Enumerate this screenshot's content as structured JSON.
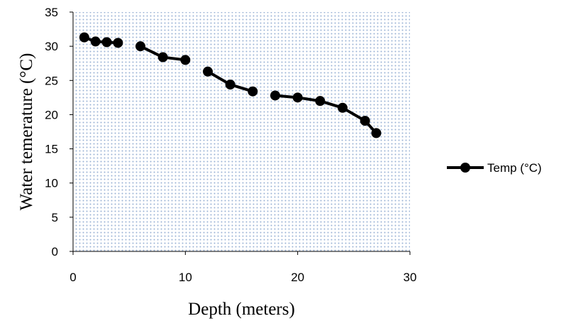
{
  "chart_data": {
    "type": "line",
    "title": "",
    "xlabel": "Depth (meters)",
    "ylabel": "Water temerature (°C)",
    "xlim": [
      0,
      30
    ],
    "ylim": [
      0,
      35
    ],
    "xticks": [
      "0",
      "10",
      "20",
      "30"
    ],
    "yticks": [
      "0",
      "5",
      "10",
      "15",
      "20",
      "25",
      "30",
      "35"
    ],
    "grid": false,
    "plot_background": "dotted-blue",
    "legend_position": "right",
    "colors": {
      "series": "#000000",
      "plot_dots": "#9ab3d5",
      "axis": "#000000"
    },
    "series": [
      {
        "name": "Temp (°C)",
        "segments": [
          {
            "x": [
              1,
              2,
              3,
              4
            ],
            "y": [
              31.3,
              30.7,
              30.6,
              30.5
            ]
          },
          {
            "x": [
              6,
              8,
              10
            ],
            "y": [
              30.0,
              28.4,
              28.0
            ]
          },
          {
            "x": [
              12,
              14,
              16
            ],
            "y": [
              26.3,
              24.4,
              23.4
            ]
          },
          {
            "x": [
              18,
              20,
              22,
              24,
              26,
              27
            ],
            "y": [
              22.8,
              22.5,
              22.0,
              21.0,
              19.1,
              17.3
            ]
          }
        ]
      }
    ]
  }
}
